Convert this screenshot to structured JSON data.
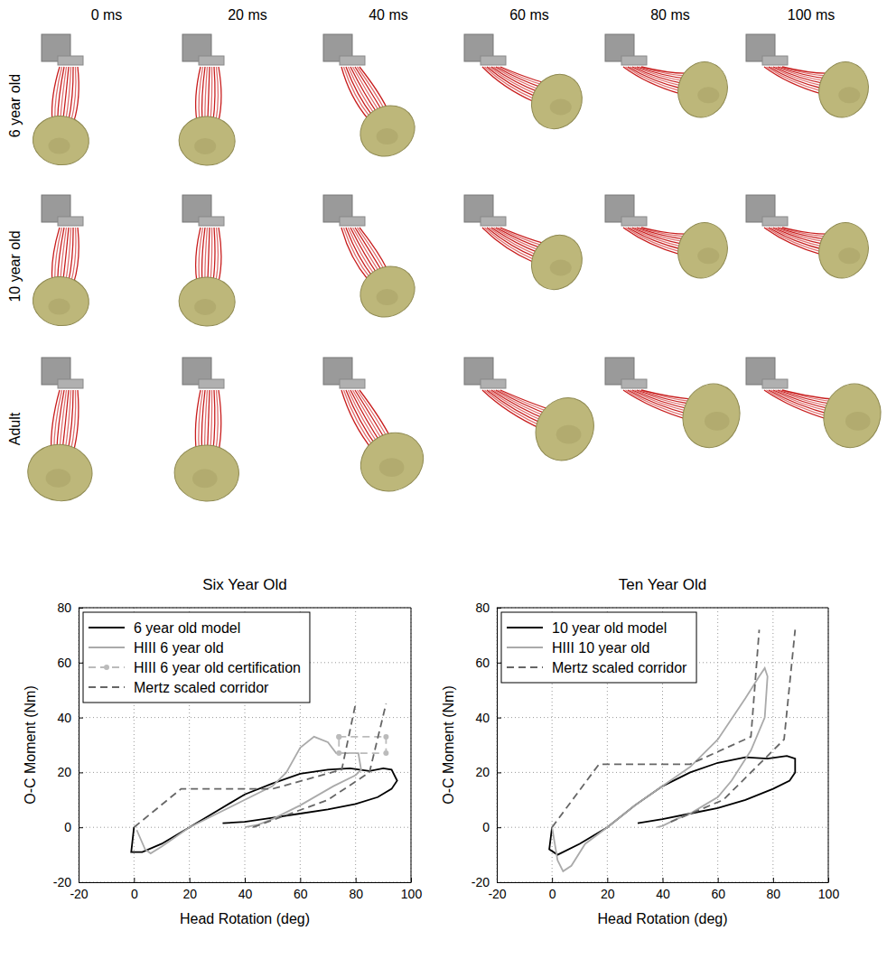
{
  "figure": {
    "columns": [
      "0 ms",
      "20 ms",
      "40 ms",
      "60 ms",
      "80 ms",
      "100 ms"
    ],
    "rows": [
      "6 year old",
      "10 year old",
      "Adult"
    ]
  },
  "chart_data": [
    {
      "type": "line",
      "title": "Six Year Old",
      "x_label": "Head Rotation (deg)",
      "y_label": "O-C Moment (Nm)",
      "xlim": [
        -20,
        100
      ],
      "xticks": [
        -20,
        0,
        20,
        40,
        60,
        80,
        100
      ],
      "ylim": [
        -20,
        80
      ],
      "yticks": [
        -20,
        0,
        20,
        40,
        60,
        80
      ],
      "grid": true,
      "legend": "upper left",
      "series": [
        {
          "name": "6 year old model",
          "color": "#000000",
          "line_style": "solid",
          "x": [
            0,
            -1,
            3,
            10,
            20,
            30,
            40,
            50,
            60,
            70,
            78,
            85,
            90,
            93,
            95,
            93,
            88,
            80,
            70,
            60,
            50,
            40,
            32
          ],
          "values": [
            0,
            -9,
            -9,
            -6,
            0,
            6,
            12,
            16,
            19.5,
            21,
            21.5,
            20.5,
            21.5,
            21,
            17,
            14,
            11,
            8.5,
            6.5,
            5,
            3.5,
            2,
            1.5
          ]
        },
        {
          "name": "HIII 6 year old",
          "color": "#aaaaaa",
          "line_style": "solid",
          "x": [
            1,
            4,
            6,
            10,
            20,
            30,
            40,
            50,
            55,
            60,
            65,
            70,
            73,
            78,
            81,
            82,
            80,
            72,
            60,
            50,
            45,
            40
          ],
          "values": [
            -1,
            -8,
            -9.5,
            -7,
            0,
            5,
            10,
            15,
            20,
            29,
            33,
            31,
            27,
            27,
            27,
            21,
            19,
            15,
            8,
            3,
            1,
            0
          ]
        },
        {
          "name": "HIII 6 year old certification",
          "color": "#bbbbbb",
          "line_style": "dashed",
          "marker": "circle",
          "x": [
            74,
            91,
            91,
            74,
            74
          ],
          "values": [
            33,
            33,
            27,
            27,
            33
          ]
        },
        {
          "name": "Mertz scaled corridor",
          "color": "#666666",
          "line_style": "dashed",
          "x": [
            0,
            17,
            50,
            75,
            80,
            null,
            43,
            70,
            85,
            91
          ],
          "values": [
            0,
            14,
            14,
            21,
            45,
            null,
            0,
            10,
            20,
            45
          ]
        }
      ]
    },
    {
      "type": "line",
      "title": "Ten Year Old",
      "x_label": "Head Rotation (deg)",
      "y_label": "O-C Moment (Nm)",
      "xlim": [
        -20,
        100
      ],
      "xticks": [
        -20,
        0,
        20,
        40,
        60,
        80,
        100
      ],
      "ylim": [
        -20,
        80
      ],
      "yticks": [
        -20,
        0,
        20,
        40,
        60,
        80
      ],
      "grid": true,
      "legend": "upper left",
      "series": [
        {
          "name": "10 year old model",
          "color": "#000000",
          "line_style": "solid",
          "x": [
            0,
            -1,
            2,
            10,
            20,
            30,
            40,
            50,
            60,
            70,
            78,
            85,
            88,
            88,
            86,
            80,
            70,
            60,
            50,
            40,
            31
          ],
          "values": [
            0,
            -8,
            -10,
            -6,
            0,
            8,
            15,
            20,
            23.5,
            25.5,
            25,
            26,
            25,
            20,
            17,
            14,
            10,
            7,
            5,
            3,
            1.5
          ]
        },
        {
          "name": "HIII 10 year old",
          "color": "#aaaaaa",
          "line_style": "solid",
          "x": [
            0,
            2,
            4,
            7,
            12,
            20,
            30,
            40,
            50,
            60,
            70,
            75,
            77,
            78,
            77,
            72,
            65,
            60,
            55,
            50,
            45,
            40,
            38
          ],
          "values": [
            0,
            -12,
            -16,
            -14,
            -6,
            0,
            8,
            15,
            22,
            32,
            47,
            55,
            58,
            55,
            40,
            28,
            17,
            11,
            8,
            5,
            3,
            0.5,
            0
          ]
        },
        {
          "name": "Mertz scaled corridor",
          "color": "#666666",
          "line_style": "dashed",
          "x": [
            0,
            17,
            50,
            72,
            75,
            null,
            43,
            62,
            84,
            88
          ],
          "values": [
            0,
            23,
            23,
            33,
            72,
            null,
            2,
            10,
            32,
            72
          ]
        }
      ]
    }
  ]
}
